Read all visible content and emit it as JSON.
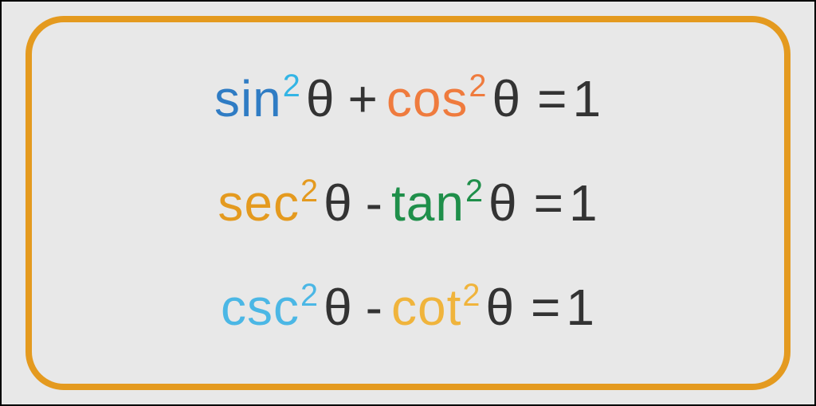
{
  "infographic": {
    "type": "math-identities",
    "background_color": "#e8e8e8",
    "outer_border_color": "#000000",
    "frame": {
      "border_color": "#e49a1f",
      "border_width": 8,
      "border_radius": 48
    },
    "text_color": "#333333",
    "font_size_main": 64,
    "equations": [
      {
        "term1": {
          "fn": "sin",
          "exp": "2",
          "color": "#2f7cc4",
          "exp_color": "#33b5e5"
        },
        "op": "+",
        "term2": {
          "fn": "cos",
          "exp": "2",
          "color": "#ef7b3e",
          "exp_color": "#ef7b3e"
        },
        "theta": "θ",
        "eq": "=",
        "rhs": "1"
      },
      {
        "term1": {
          "fn": "sec",
          "exp": "2",
          "color": "#e49a1f",
          "exp_color": "#e49a1f"
        },
        "op": "-",
        "term2": {
          "fn": "tan",
          "exp": "2",
          "color": "#1f8f4a",
          "exp_color": "#1f8f4a"
        },
        "theta": "θ",
        "eq": "=",
        "rhs": "1"
      },
      {
        "term1": {
          "fn": "csc",
          "exp": "2",
          "color": "#4bb7e5",
          "exp_color": "#4bb7e5"
        },
        "op": "-",
        "term2": {
          "fn": "cot",
          "exp": "2",
          "color": "#f0b43c",
          "exp_color": "#f0b43c"
        },
        "theta": "θ",
        "eq": "=",
        "rhs": "1"
      }
    ]
  }
}
